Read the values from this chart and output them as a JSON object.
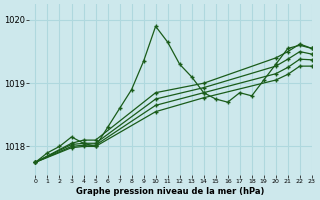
{
  "xlabel": "Graphe pression niveau de la mer (hPa)",
  "ylim": [
    1017.55,
    1020.25
  ],
  "xlim": [
    -0.5,
    23
  ],
  "yticks": [
    1018,
    1019,
    1020
  ],
  "xticks": [
    0,
    1,
    2,
    3,
    4,
    5,
    6,
    7,
    8,
    9,
    10,
    11,
    12,
    13,
    14,
    15,
    16,
    17,
    18,
    19,
    20,
    21,
    22,
    23
  ],
  "bg_color": "#cde8ec",
  "grid_color": "#afd8de",
  "line_color": "#1a5c1a",
  "lines": [
    {
      "x": [
        0,
        1,
        2,
        3,
        4,
        5,
        6,
        7,
        8,
        9,
        10,
        11,
        12,
        13,
        14,
        15,
        16,
        17,
        18,
        19,
        20,
        21,
        22,
        23
      ],
      "y": [
        1017.75,
        1017.9,
        1018.0,
        1018.15,
        1018.05,
        1018.0,
        1018.3,
        1018.6,
        1018.9,
        1019.35,
        1019.9,
        1019.65,
        1019.3,
        1019.1,
        1018.85,
        1018.75,
        1018.7,
        1018.85,
        1018.8,
        1019.05,
        1019.3,
        1019.55,
        1019.6,
        1019.55
      ],
      "style": "-",
      "marker": "+"
    },
    {
      "x": [
        0,
        3,
        4,
        5,
        10,
        14,
        20,
        21,
        22,
        23
      ],
      "y": [
        1017.75,
        1018.05,
        1018.1,
        1018.1,
        1018.85,
        1019.0,
        1019.4,
        1019.5,
        1019.62,
        1019.55
      ],
      "style": "-",
      "marker": "+"
    },
    {
      "x": [
        0,
        3,
        4,
        5,
        10,
        14,
        20,
        21,
        22,
        23
      ],
      "y": [
        1017.75,
        1018.03,
        1018.05,
        1018.05,
        1018.75,
        1018.93,
        1019.27,
        1019.38,
        1019.5,
        1019.46
      ],
      "style": "-",
      "marker": "+"
    },
    {
      "x": [
        0,
        3,
        4,
        5,
        10,
        14,
        20,
        21,
        22,
        23
      ],
      "y": [
        1017.75,
        1018.0,
        1018.02,
        1018.02,
        1018.65,
        1018.85,
        1019.15,
        1019.25,
        1019.38,
        1019.37
      ],
      "style": "-",
      "marker": "+"
    },
    {
      "x": [
        0,
        3,
        4,
        5,
        10,
        14,
        20,
        21,
        22,
        23
      ],
      "y": [
        1017.75,
        1017.98,
        1018.0,
        1018.0,
        1018.55,
        1018.77,
        1019.05,
        1019.14,
        1019.27,
        1019.27
      ],
      "style": "-",
      "marker": "+"
    }
  ]
}
